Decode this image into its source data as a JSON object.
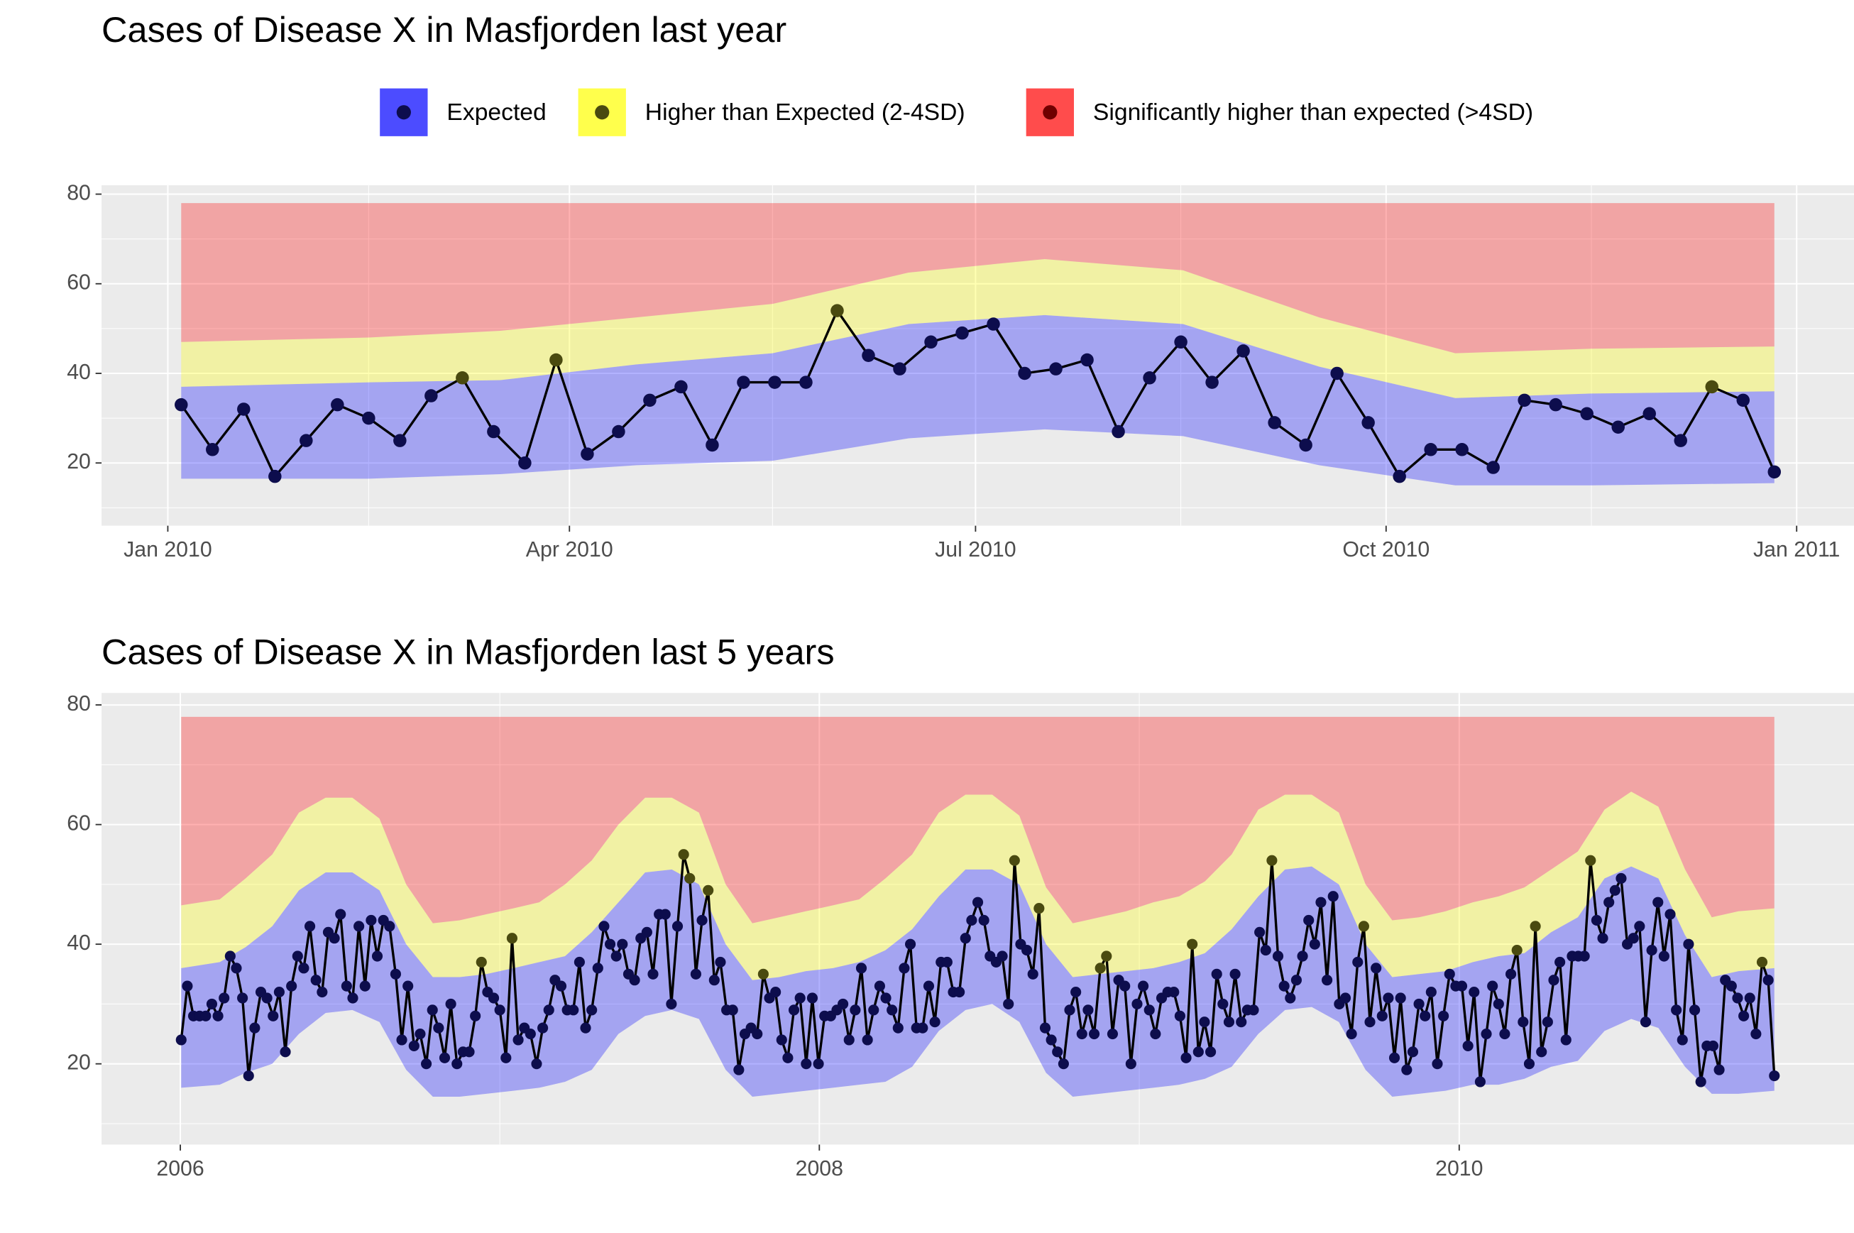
{
  "chart_data": [
    {
      "type": "line",
      "title": "Cases of Disease X in Masfjorden last year",
      "legend": "top",
      "grid": true,
      "ylim": [
        6,
        82
      ],
      "yticks": [
        20,
        40,
        60,
        80
      ],
      "xticks": [
        {
          "value": "2010-01",
          "label": "Jan 2010"
        },
        {
          "value": "2010-04",
          "label": "Apr 2010"
        },
        {
          "value": "2010-07",
          "label": "Jul 2010"
        },
        {
          "value": "2010-10",
          "label": "Oct 2010"
        },
        {
          "value": "2011-01",
          "label": "Jan 2011"
        }
      ],
      "x": [
        "2010-W01",
        "2010-W02",
        "2010-W03",
        "2010-W04",
        "2010-W05",
        "2010-W06",
        "2010-W07",
        "2010-W08",
        "2010-W09",
        "2010-W10",
        "2010-W11",
        "2010-W12",
        "2010-W13",
        "2010-W14",
        "2010-W15",
        "2010-W16",
        "2010-W17",
        "2010-W18",
        "2010-W19",
        "2010-W20",
        "2010-W21",
        "2010-W22",
        "2010-W23",
        "2010-W24",
        "2010-W25",
        "2010-W26",
        "2010-W27",
        "2010-W28",
        "2010-W29",
        "2010-W30",
        "2010-W31",
        "2010-W32",
        "2010-W33",
        "2010-W34",
        "2010-W35",
        "2010-W36",
        "2010-W37",
        "2010-W38",
        "2010-W39",
        "2010-W40",
        "2010-W41",
        "2010-W42",
        "2010-W43",
        "2010-W44",
        "2010-W45",
        "2010-W46",
        "2010-W47",
        "2010-W48",
        "2010-W49",
        "2010-W50",
        "2010-W51",
        "2010-W52"
      ],
      "values": [
        33,
        23,
        32,
        17,
        25,
        33,
        30,
        25,
        35,
        39,
        27,
        20,
        43,
        22,
        27,
        34,
        37,
        24,
        38,
        38,
        38,
        54,
        44,
        41,
        47,
        49,
        51,
        40,
        41,
        43,
        27,
        39,
        47,
        38,
        45,
        29,
        24,
        40,
        29,
        17,
        23,
        23,
        19,
        34,
        33,
        31,
        28,
        31,
        25,
        37,
        34,
        18
      ],
      "band_x": [
        "2010-01",
        "2010-02",
        "2010-03",
        "2010-04",
        "2010-05",
        "2010-06",
        "2010-07",
        "2010-08",
        "2010-09",
        "2010-10",
        "2010-11",
        "2010-12"
      ],
      "series": [
        {
          "name": "Expected",
          "color": "#0000ff",
          "point_color": "#0d0d4d",
          "lower": [
            16.5,
            16.5,
            17.5,
            19.5,
            20.5,
            25.5,
            27.5,
            26,
            19.5,
            15,
            15,
            15.5
          ],
          "upper": [
            37,
            38,
            38.5,
            42,
            44.5,
            51,
            53,
            51,
            41.5,
            34.5,
            35.5,
            36
          ]
        },
        {
          "name": "Higher than Expected (2-4SD)",
          "color": "#ffff00",
          "point_color": "#4a4a10",
          "upper": [
            47,
            48,
            49.5,
            52.5,
            55.5,
            62.5,
            65.5,
            63,
            52.5,
            44.5,
            45.5,
            46
          ]
        },
        {
          "name": "Significantly higher than expected (>4SD)",
          "color": "#ff0000",
          "point_color": "#700000",
          "upper": [
            78,
            78,
            78,
            78,
            78,
            78,
            78,
            78,
            78,
            78,
            78,
            78
          ]
        }
      ]
    },
    {
      "type": "line",
      "title": "Cases of Disease X in Masfjorden last 5 years",
      "grid": true,
      "ylim": [
        6.5,
        82
      ],
      "yticks": [
        20,
        40,
        60,
        80
      ],
      "xticks": [
        2006,
        2008,
        2010
      ],
      "x": [
        "2006-W01",
        "2006-W02",
        "2006-W03",
        "2006-W04",
        "2006-W05",
        "2006-W06",
        "2006-W07",
        "2006-W08",
        "2006-W09",
        "2006-W10",
        "2006-W11",
        "2006-W12",
        "2006-W13",
        "2006-W14",
        "2006-W15",
        "2006-W16",
        "2006-W17",
        "2006-W18",
        "2006-W19",
        "2006-W20",
        "2006-W21",
        "2006-W22",
        "2006-W23",
        "2006-W24",
        "2006-W25",
        "2006-W26",
        "2006-W27",
        "2006-W28",
        "2006-W29",
        "2006-W30",
        "2006-W31",
        "2006-W32",
        "2006-W33",
        "2006-W34",
        "2006-W35",
        "2006-W36",
        "2006-W37",
        "2006-W38",
        "2006-W39",
        "2006-W40",
        "2006-W41",
        "2006-W42",
        "2006-W43",
        "2006-W44",
        "2006-W45",
        "2006-W46",
        "2006-W47",
        "2006-W48",
        "2006-W49",
        "2006-W50",
        "2006-W51",
        "2006-W52",
        "2007-W01",
        "2007-W02",
        "2007-W03",
        "2007-W04",
        "2007-W05",
        "2007-W06",
        "2007-W07",
        "2007-W08",
        "2007-W09",
        "2007-W10",
        "2007-W11",
        "2007-W12",
        "2007-W13",
        "2007-W14",
        "2007-W15",
        "2007-W16",
        "2007-W17",
        "2007-W18",
        "2007-W19",
        "2007-W20",
        "2007-W21",
        "2007-W22",
        "2007-W23",
        "2007-W24",
        "2007-W25",
        "2007-W26",
        "2007-W27",
        "2007-W28",
        "2007-W29",
        "2007-W30",
        "2007-W31",
        "2007-W32",
        "2007-W33",
        "2007-W34",
        "2007-W35",
        "2007-W36",
        "2007-W37",
        "2007-W38",
        "2007-W39",
        "2007-W40",
        "2007-W41",
        "2007-W42",
        "2007-W43",
        "2007-W44",
        "2007-W45",
        "2007-W46",
        "2007-W47",
        "2007-W48",
        "2007-W49",
        "2007-W50",
        "2007-W51",
        "2007-W52",
        "2008-W01",
        "2008-W02",
        "2008-W03",
        "2008-W04",
        "2008-W05",
        "2008-W06",
        "2008-W07",
        "2008-W08",
        "2008-W09",
        "2008-W10",
        "2008-W11",
        "2008-W12",
        "2008-W13",
        "2008-W14",
        "2008-W15",
        "2008-W16",
        "2008-W17",
        "2008-W18",
        "2008-W19",
        "2008-W20",
        "2008-W21",
        "2008-W22",
        "2008-W23",
        "2008-W24",
        "2008-W25",
        "2008-W26",
        "2008-W27",
        "2008-W28",
        "2008-W29",
        "2008-W30",
        "2008-W31",
        "2008-W32",
        "2008-W33",
        "2008-W34",
        "2008-W35",
        "2008-W36",
        "2008-W37",
        "2008-W38",
        "2008-W39",
        "2008-W40",
        "2008-W41",
        "2008-W42",
        "2008-W43",
        "2008-W44",
        "2008-W45",
        "2008-W46",
        "2008-W47",
        "2008-W48",
        "2008-W49",
        "2008-W50",
        "2008-W51",
        "2008-W52",
        "2009-W01",
        "2009-W02",
        "2009-W03",
        "2009-W04",
        "2009-W05",
        "2009-W06",
        "2009-W07",
        "2009-W08",
        "2009-W09",
        "2009-W10",
        "2009-W11",
        "2009-W12",
        "2009-W13",
        "2009-W14",
        "2009-W15",
        "2009-W16",
        "2009-W17",
        "2009-W18",
        "2009-W19",
        "2009-W20",
        "2009-W21",
        "2009-W22",
        "2009-W23",
        "2009-W24",
        "2009-W25",
        "2009-W26",
        "2009-W27",
        "2009-W28",
        "2009-W29",
        "2009-W30",
        "2009-W31",
        "2009-W32",
        "2009-W33",
        "2009-W34",
        "2009-W35",
        "2009-W36",
        "2009-W37",
        "2009-W38",
        "2009-W39",
        "2009-W40",
        "2009-W41",
        "2009-W42",
        "2009-W43",
        "2009-W44",
        "2009-W45",
        "2009-W46",
        "2009-W47",
        "2009-W48",
        "2009-W49",
        "2009-W50",
        "2009-W51",
        "2009-W52",
        "2009-W53",
        "2010-W01",
        "2010-W02",
        "2010-W03",
        "2010-W04",
        "2010-W05",
        "2010-W06",
        "2010-W07",
        "2010-W08",
        "2010-W09",
        "2010-W10",
        "2010-W11",
        "2010-W12",
        "2010-W13",
        "2010-W14",
        "2010-W15",
        "2010-W16",
        "2010-W17",
        "2010-W18",
        "2010-W19",
        "2010-W20",
        "2010-W21",
        "2010-W22",
        "2010-W23",
        "2010-W24",
        "2010-W25",
        "2010-W26",
        "2010-W27",
        "2010-W28",
        "2010-W29",
        "2010-W30",
        "2010-W31",
        "2010-W32",
        "2010-W33",
        "2010-W34",
        "2010-W35",
        "2010-W36",
        "2010-W37",
        "2010-W38",
        "2010-W39",
        "2010-W40",
        "2010-W41",
        "2010-W42",
        "2010-W43",
        "2010-W44",
        "2010-W45",
        "2010-W46",
        "2010-W47",
        "2010-W48",
        "2010-W49",
        "2010-W50",
        "2010-W51",
        "2010-W52"
      ],
      "values": [
        24,
        33,
        28,
        28,
        28,
        30,
        28,
        31,
        38,
        36,
        31,
        18,
        26,
        32,
        31,
        28,
        32,
        22,
        33,
        38,
        36,
        43,
        34,
        32,
        42,
        41,
        45,
        33,
        31,
        43,
        33,
        44,
        38,
        44,
        43,
        35,
        24,
        33,
        23,
        25,
        20,
        29,
        26,
        21,
        30,
        20,
        22,
        22,
        28,
        37,
        32,
        31,
        29,
        21,
        41,
        24,
        26,
        25,
        20,
        26,
        29,
        34,
        33,
        29,
        29,
        37,
        26,
        29,
        36,
        43,
        40,
        38,
        40,
        35,
        34,
        41,
        42,
        35,
        45,
        45,
        30,
        43,
        55,
        51,
        35,
        44,
        49,
        34,
        37,
        29,
        29,
        19,
        25,
        26,
        25,
        35,
        31,
        32,
        24,
        21,
        29,
        31,
        20,
        31,
        20,
        28,
        28,
        29,
        30,
        24,
        29,
        36,
        24,
        29,
        33,
        31,
        29,
        26,
        36,
        40,
        26,
        26,
        33,
        27,
        37,
        37,
        32,
        32,
        41,
        44,
        47,
        44,
        38,
        37,
        38,
        30,
        54,
        40,
        39,
        35,
        46,
        26,
        24,
        22,
        20,
        29,
        32,
        25,
        29,
        25,
        36,
        38,
        25,
        34,
        33,
        20,
        30,
        33,
        29,
        25,
        31,
        32,
        32,
        28,
        21,
        40,
        22,
        27,
        22,
        35,
        30,
        27,
        35,
        27,
        29,
        29,
        42,
        39,
        54,
        38,
        33,
        31,
        34,
        38,
        44,
        40,
        47,
        34,
        48,
        30,
        31,
        25,
        37,
        43,
        27,
        36,
        28,
        31,
        21,
        31,
        19,
        22,
        30,
        28,
        32,
        20,
        28,
        35,
        33,
        33,
        23,
        32,
        17,
        25,
        33,
        30,
        25,
        35,
        39,
        27,
        20,
        43,
        22,
        27,
        34,
        37,
        24,
        38,
        38,
        38,
        54,
        44,
        41,
        47,
        49,
        51,
        40,
        41,
        43,
        27,
        39,
        47,
        38,
        45,
        29,
        24,
        40,
        29,
        17,
        23,
        23,
        19,
        34,
        33,
        31,
        28,
        31,
        25,
        37,
        34,
        18
      ],
      "band_x": [
        "2006-01",
        "2006-02",
        "2006-03",
        "2006-04",
        "2006-05",
        "2006-06",
        "2006-07",
        "2006-08",
        "2006-09",
        "2006-10",
        "2006-11",
        "2006-12",
        "2007-01",
        "2007-02",
        "2007-03",
        "2007-04",
        "2007-05",
        "2007-06",
        "2007-07",
        "2007-08",
        "2007-09",
        "2007-10",
        "2007-11",
        "2007-12",
        "2008-01",
        "2008-02",
        "2008-03",
        "2008-04",
        "2008-05",
        "2008-06",
        "2008-07",
        "2008-08",
        "2008-09",
        "2008-10",
        "2008-11",
        "2008-12",
        "2009-01",
        "2009-02",
        "2009-03",
        "2009-04",
        "2009-05",
        "2009-06",
        "2009-07",
        "2009-08",
        "2009-09",
        "2009-10",
        "2009-11",
        "2009-12",
        "2010-01",
        "2010-02",
        "2010-03",
        "2010-04",
        "2010-05",
        "2010-06",
        "2010-07",
        "2010-08",
        "2010-09",
        "2010-10",
        "2010-11",
        "2010-12"
      ],
      "series": [
        {
          "name": "Expected",
          "color": "#0000ff",
          "point_color": "#0d0d4d",
          "lower": [
            16,
            16.5,
            18.5,
            20,
            25,
            28.5,
            29,
            27,
            19,
            14.5,
            14.5,
            15,
            15.5,
            16,
            17,
            19,
            25,
            28,
            29,
            27.5,
            19,
            14.5,
            15,
            15.5,
            16,
            16.5,
            17,
            19.5,
            25.5,
            29,
            30,
            27,
            18.5,
            14.5,
            15,
            15.5,
            16,
            16.5,
            17.5,
            19.5,
            25,
            29,
            29.5,
            27,
            19,
            14.5,
            15,
            15.5,
            16.5,
            16.5,
            17.5,
            19.5,
            20.5,
            25.5,
            27.5,
            26,
            19.5,
            15,
            15,
            15.5
          ],
          "upper": [
            36,
            37,
            39.5,
            43,
            49,
            52,
            52,
            49,
            40,
            34.5,
            34.5,
            35,
            36,
            37,
            38,
            42,
            47,
            52,
            52.5,
            50,
            40,
            34,
            34.5,
            35.5,
            36,
            37,
            39,
            42.5,
            48,
            52.5,
            52.5,
            50,
            40,
            34.5,
            35,
            35.5,
            36,
            37,
            38.5,
            42.5,
            48,
            52.5,
            53,
            50,
            40,
            34.5,
            35,
            35.5,
            37,
            38,
            38.5,
            42,
            44.5,
            51,
            53,
            51,
            41.5,
            34.5,
            35.5,
            36
          ]
        },
        {
          "name": "Higher than Expected (2-4SD)",
          "color": "#ffff00",
          "point_color": "#4a4a10",
          "upper": [
            46.5,
            47.5,
            51,
            55,
            62,
            64.5,
            64.5,
            61,
            50,
            43.5,
            44,
            45,
            46,
            47,
            50,
            54,
            60,
            64.5,
            64.5,
            62,
            50,
            43.5,
            44.5,
            45.5,
            46.5,
            47.5,
            51,
            55,
            62,
            65,
            65,
            61.5,
            49.5,
            43.5,
            44.5,
            45.5,
            47,
            48,
            50.5,
            55,
            62.5,
            65,
            65,
            62,
            50,
            44,
            44.5,
            45.5,
            47,
            48,
            49.5,
            52.5,
            55.5,
            62.5,
            65.5,
            63,
            52.5,
            44.5,
            45.5,
            46
          ]
        },
        {
          "name": "Significantly higher than expected (>4SD)",
          "color": "#ff0000",
          "point_color": "#700000",
          "upper": [
            78,
            78,
            78,
            78,
            78,
            78,
            78,
            78,
            78,
            78,
            78,
            78,
            78,
            78,
            78,
            78,
            78,
            78,
            78,
            78,
            78,
            78,
            78,
            78,
            78,
            78,
            78,
            78,
            78,
            78,
            78,
            78,
            78,
            78,
            78,
            78,
            78,
            78,
            78,
            78,
            78,
            78,
            78,
            78,
            78,
            78,
            78,
            78,
            78,
            78,
            78,
            78,
            78,
            78,
            78,
            78,
            78,
            78,
            78,
            78
          ]
        }
      ]
    }
  ]
}
